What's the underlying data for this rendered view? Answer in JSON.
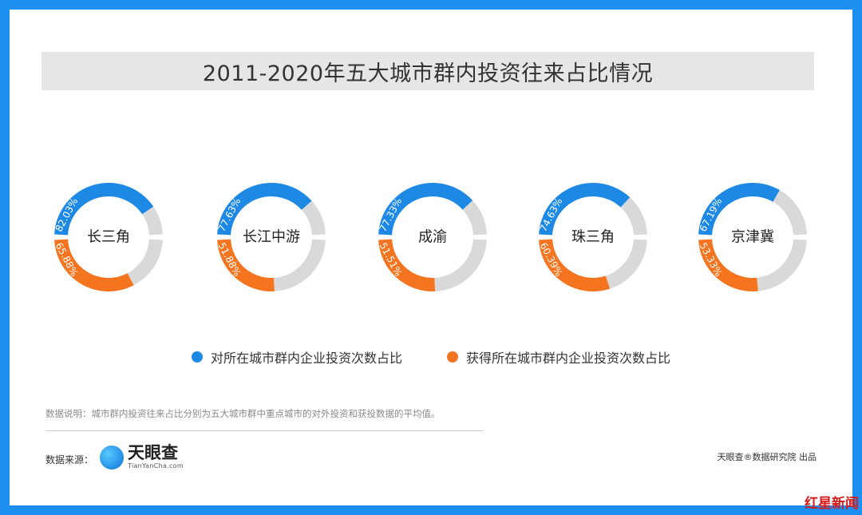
{
  "title": "2011-2020年五大城市群内投资往来占比情况",
  "colors": {
    "outbound": "#1e88e5",
    "inbound": "#f5741f",
    "remainder": "#d9d9d9",
    "center": "#ffffff"
  },
  "chart_data": {
    "type": "donut",
    "categories": [
      "长三角",
      "长江中游",
      "成渝",
      "珠三角",
      "京津冀"
    ],
    "series": [
      {
        "name": "对所在城市群内企业投资次数占比",
        "values": [
          82.03,
          77.63,
          77.33,
          74.63,
          67.19
        ],
        "labels": [
          "82.03%",
          "77.63%",
          "77.33%",
          "74.63%",
          "67.19%"
        ]
      },
      {
        "name": "获得所在城市群内企业投资次数占比",
        "values": [
          65.88,
          51.88,
          51.51,
          60.39,
          53.33
        ],
        "labels": [
          "65.88%",
          "51.88%",
          "51.51%",
          "60.39%",
          "53.33%"
        ]
      }
    ],
    "unit": "%"
  },
  "note": "数据说明：城市群内投资往来占比分别为五大城市群中重点城市的对外投资和获投数据的平均值。",
  "source_label": "数据来源：",
  "logo": {
    "name": "天眼查",
    "url": "TianYanCha.com"
  },
  "credit": "天眼查®数据研究院 出品",
  "corner_stamp": "红星新闻"
}
